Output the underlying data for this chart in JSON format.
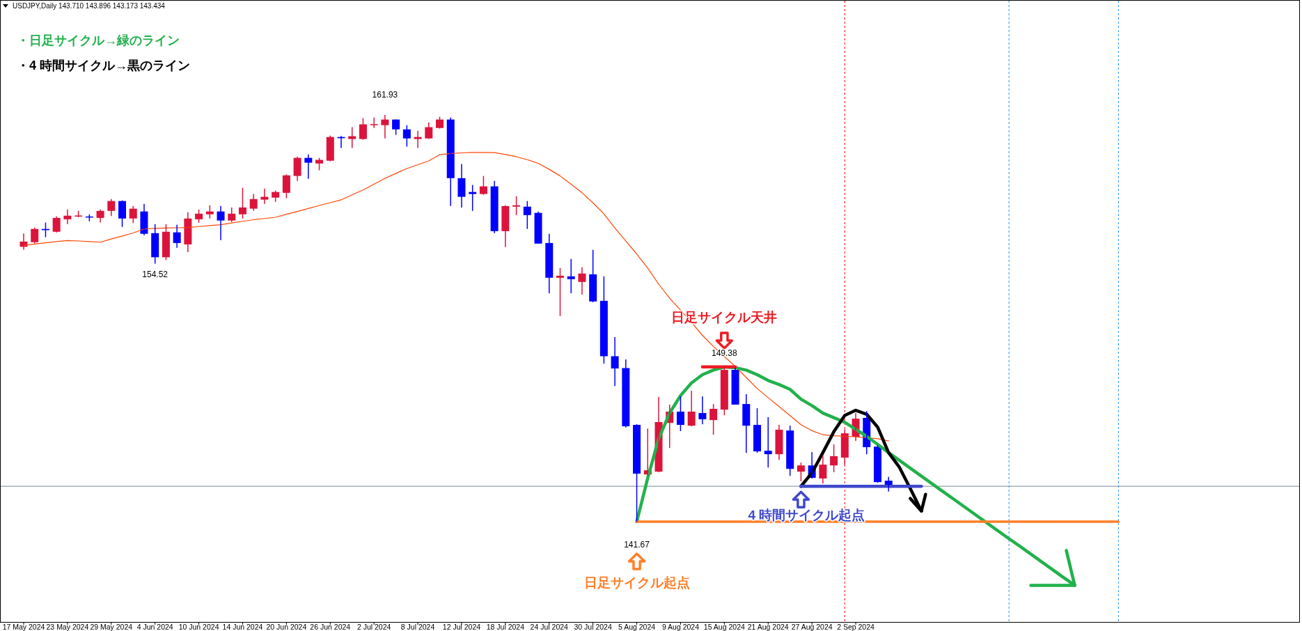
{
  "chart_data": {
    "type": "candlestick",
    "title": "USDJPY,Daily  143.710 143.896 143.173 143.434",
    "categories": [
      "17 May 2024",
      null,
      null,
      null,
      "23 May 2024",
      null,
      null,
      null,
      "29 May 2024",
      null,
      null,
      null,
      "4 Jun 2024",
      null,
      null,
      null,
      "10 Jun 2024",
      null,
      null,
      null,
      "14 Jun 2024",
      null,
      null,
      null,
      "20 Jun 2024",
      null,
      null,
      null,
      "26 Jun 2024",
      null,
      null,
      null,
      "2 Jul 2024",
      null,
      null,
      null,
      "8 Jul 2024",
      null,
      null,
      null,
      "12 Jul 2024",
      null,
      null,
      null,
      "18 Jul 2024",
      null,
      null,
      null,
      "24 Jul 2024",
      null,
      null,
      null,
      "30 Jul 2024",
      null,
      null,
      null,
      "5 Aug 2024",
      null,
      null,
      null,
      "9 Aug 2024",
      null,
      null,
      null,
      "15 Aug 2024",
      null,
      null,
      null,
      "21 Aug 2024",
      null,
      null,
      null,
      "27 Aug 2024",
      null,
      null,
      null,
      "2 Sep 2024",
      null,
      null,
      null,
      null,
      null,
      null,
      null,
      null,
      null,
      null,
      null,
      null,
      null,
      null,
      null,
      null,
      null,
      null,
      null,
      null,
      null,
      null,
      null,
      null,
      null,
      null,
      null,
      null,
      null,
      null,
      null,
      null,
      null,
      null,
      null,
      null,
      null,
      null,
      null,
      null
    ],
    "ohlc": [
      [
        155.36,
        156.02,
        155.22,
        155.62
      ],
      [
        155.59,
        156.32,
        155.53,
        156.25
      ],
      [
        156.25,
        156.57,
        155.84,
        156.19
      ],
      [
        156.11,
        156.87,
        156.08,
        156.8
      ],
      [
        156.73,
        157.22,
        156.49,
        156.91
      ],
      [
        156.89,
        157.15,
        156.83,
        156.92
      ],
      [
        156.87,
        156.98,
        156.63,
        156.82
      ],
      [
        156.8,
        157.22,
        156.57,
        157.15
      ],
      [
        157.15,
        157.74,
        156.89,
        157.64
      ],
      [
        157.64,
        157.67,
        156.35,
        156.77
      ],
      [
        156.77,
        157.39,
        156.54,
        157.26
      ],
      [
        157.12,
        157.5,
        155.94,
        156.01
      ],
      [
        156.04,
        156.49,
        154.52,
        154.84
      ],
      [
        154.84,
        156.49,
        154.7,
        156.11
      ],
      [
        156.08,
        156.46,
        155.31,
        155.55
      ],
      [
        155.48,
        157.08,
        155.1,
        156.77
      ],
      [
        156.73,
        157.22,
        156.56,
        157.01
      ],
      [
        156.98,
        157.43,
        156.77,
        157.12
      ],
      [
        157.12,
        157.39,
        155.69,
        156.67
      ],
      [
        156.67,
        157.32,
        156.6,
        157.01
      ],
      [
        156.98,
        158.3,
        156.77,
        157.32
      ],
      [
        157.26,
        157.99,
        157.15,
        157.74
      ],
      [
        157.71,
        158.26,
        157.5,
        157.85
      ],
      [
        157.81,
        158.16,
        157.6,
        158.09
      ],
      [
        158.05,
        158.96,
        157.78,
        158.92
      ],
      [
        158.89,
        159.86,
        158.64,
        159.79
      ],
      [
        159.79,
        159.96,
        158.75,
        159.55
      ],
      [
        159.51,
        159.79,
        159.17,
        159.69
      ],
      [
        159.65,
        160.9,
        159.62,
        160.83
      ],
      [
        160.83,
        160.88,
        160.28,
        160.77
      ],
      [
        160.73,
        161.32,
        160.28,
        160.87
      ],
      [
        160.73,
        161.77,
        160.69,
        161.46
      ],
      [
        161.43,
        161.8,
        161.28,
        161.47
      ],
      [
        161.42,
        161.93,
        160.76,
        161.7
      ],
      [
        161.7,
        161.7,
        160.94,
        161.21
      ],
      [
        161.21,
        161.42,
        160.35,
        160.76
      ],
      [
        160.73,
        161.14,
        160.28,
        160.83
      ],
      [
        160.76,
        161.56,
        160.73,
        161.32
      ],
      [
        161.28,
        161.84,
        161.25,
        161.7
      ],
      [
        161.7,
        161.8,
        157.39,
        158.78
      ],
      [
        158.78,
        159.48,
        157.32,
        157.85
      ],
      [
        158.09,
        158.44,
        157.15,
        157.99
      ],
      [
        157.99,
        158.89,
        157.95,
        158.37
      ],
      [
        158.37,
        158.64,
        156.04,
        156.14
      ],
      [
        156.14,
        157.43,
        155.35,
        157.39
      ],
      [
        157.36,
        157.88,
        156.94,
        157.43
      ],
      [
        157.36,
        157.64,
        156.25,
        156.94
      ],
      [
        157.05,
        157.12,
        155.52,
        155.52
      ],
      [
        155.55,
        156.01,
        153.05,
        153.82
      ],
      [
        153.82,
        154.3,
        151.91,
        153.92
      ],
      [
        153.89,
        154.76,
        153.05,
        153.75
      ],
      [
        153.61,
        154.34,
        152.98,
        154.03
      ],
      [
        153.99,
        155.21,
        152.6,
        152.64
      ],
      [
        152.67,
        153.89,
        149.54,
        149.91
      ],
      [
        149.91,
        150.86,
        148.43,
        149.3
      ],
      [
        149.32,
        149.75,
        146.36,
        146.42
      ],
      [
        146.49,
        146.52,
        141.67,
        144.06
      ],
      [
        144.02,
        146.31,
        143.99,
        144.23
      ],
      [
        144.16,
        147.88,
        144.13,
        146.63
      ],
      [
        146.59,
        147.5,
        145.34,
        147.15
      ],
      [
        147.15,
        147.91,
        146.18,
        146.49
      ],
      [
        146.45,
        148.19,
        146.42,
        147.15
      ],
      [
        147.08,
        147.91,
        146.52,
        146.77
      ],
      [
        146.73,
        147.53,
        146.0,
        147.29
      ],
      [
        147.25,
        149.38,
        146.97,
        149.23
      ],
      [
        149.23,
        149.34,
        147.5,
        147.5
      ],
      [
        147.53,
        148.02,
        145.1,
        146.45
      ],
      [
        146.49,
        147.32,
        145.1,
        145.17
      ],
      [
        145.2,
        146.87,
        144.37,
        145.03
      ],
      [
        145.03,
        146.49,
        144.75,
        146.25
      ],
      [
        146.21,
        146.45,
        143.95,
        144.3
      ],
      [
        144.16,
        144.61,
        143.68,
        144.47
      ],
      [
        144.47,
        145.13,
        143.82,
        143.85
      ],
      [
        143.82,
        144.98,
        143.57,
        144.51
      ],
      [
        144.47,
        145.52,
        144.13,
        144.93
      ],
      [
        144.86,
        146.27,
        144.51,
        146.07
      ],
      [
        145.9,
        147.08,
        145.69,
        146.8
      ],
      [
        146.84,
        147.18,
        145.03,
        145.38
      ],
      [
        145.41,
        145.48,
        143.61,
        143.64
      ],
      [
        143.71,
        143.896,
        143.173,
        143.434
      ],
      null,
      null,
      null,
      null,
      null,
      null,
      null,
      null,
      null,
      null,
      null,
      null,
      null,
      null,
      null,
      null,
      null,
      null,
      null,
      null,
      null,
      null,
      null,
      null,
      null,
      null,
      null,
      null,
      null,
      null,
      null,
      null,
      null,
      null,
      null,
      null,
      null
    ],
    "colors": [
      "#dc143c",
      "#dc143c",
      "#0000ff",
      "#dc143c",
      "#dc143c",
      "#dc143c",
      "#0000ff",
      "#dc143c",
      "#dc143c",
      "#0000ff",
      "#dc143c",
      "#0000ff",
      "#0000ff",
      "#dc143c",
      "#0000ff",
      "#dc143c",
      "#dc143c",
      "#dc143c",
      "#0000ff",
      "#dc143c",
      "#dc143c",
      "#dc143c",
      "#dc143c",
      "#dc143c",
      "#dc143c",
      "#dc143c",
      "#0000ff",
      "#dc143c",
      "#dc143c",
      "#0000ff",
      "#dc143c",
      "#dc143c",
      "#dc143c",
      "#dc143c",
      "#0000ff",
      "#0000ff",
      "#dc143c",
      "#dc143c",
      "#dc143c",
      "#0000ff",
      "#0000ff",
      "#0000ff",
      "#dc143c",
      "#0000ff",
      "#dc143c",
      "#dc143c",
      "#0000ff",
      "#0000ff",
      "#0000ff",
      "#dc143c",
      "#0000ff",
      "#dc143c",
      "#0000ff",
      "#0000ff",
      "#0000ff",
      "#0000ff",
      "#0000ff",
      "#dc143c",
      "#dc143c",
      "#dc143c",
      "#0000ff",
      "#dc143c",
      "#0000ff",
      "#dc143c",
      "#dc143c",
      "#0000ff",
      "#0000ff",
      "#0000ff",
      "#0000ff",
      "#dc143c",
      "#0000ff",
      "#dc143c",
      "#0000ff",
      "#dc143c",
      "#dc143c",
      "#dc143c",
      "#dc143c",
      "#0000ff",
      "#0000ff",
      "#0000ff",
      null,
      null,
      null,
      null,
      null,
      null,
      null,
      null,
      null,
      null,
      null,
      null,
      null,
      null,
      null,
      null,
      null,
      null,
      null,
      null,
      null,
      null,
      null,
      null,
      null,
      null,
      null,
      null,
      null,
      null,
      null,
      null,
      null,
      null,
      null,
      null,
      null
    ],
    "series": [
      {
        "type": "line",
        "color": "#ff4500",
        "values": [
          155.44,
          155.5,
          155.56,
          155.62,
          155.67,
          155.65,
          155.62,
          155.59,
          155.75,
          155.9,
          156.05,
          156.25,
          156.28,
          156.3,
          156.31,
          156.32,
          156.37,
          156.42,
          156.46,
          156.55,
          156.63,
          156.71,
          156.77,
          156.83,
          156.98,
          157.12,
          157.27,
          157.42,
          157.56,
          157.7,
          157.95,
          158.19,
          158.48,
          158.77,
          159.02,
          159.26,
          159.45,
          159.64,
          159.95,
          160.01,
          160.04,
          160.06,
          160.06,
          160.05,
          159.96,
          159.85,
          159.7,
          159.52,
          159.22,
          158.89,
          158.48,
          158.05,
          157.55,
          157.0,
          156.3,
          155.65,
          155.0,
          154.3,
          153.5,
          152.8,
          152.2,
          151.6,
          150.95,
          150.4,
          149.9,
          149.4,
          148.85,
          148.3,
          147.85,
          147.4,
          146.95,
          146.5,
          146.2,
          146.0,
          145.95,
          145.92,
          145.9,
          145.85,
          145.8,
          145.69,
          null,
          null,
          null,
          null,
          null,
          null,
          null,
          null,
          null,
          null,
          null,
          null,
          null,
          null,
          null,
          null,
          null,
          null,
          null,
          null,
          null,
          null,
          null,
          null,
          null,
          null,
          null,
          null,
          null,
          null,
          null,
          null,
          null,
          null,
          null,
          null,
          null
        ]
      },
      {
        "type": "line",
        "color": "#22b14c",
        "values": [
          null,
          null,
          null,
          null,
          null,
          null,
          null,
          null,
          null,
          null,
          null,
          null,
          null,
          null,
          null,
          null,
          null,
          null,
          null,
          null,
          null,
          null,
          null,
          null,
          null,
          null,
          null,
          null,
          null,
          null,
          null,
          null,
          null,
          null,
          null,
          null,
          null,
          null,
          null,
          null,
          null,
          null,
          null,
          null,
          null,
          null,
          null,
          null,
          null,
          null,
          null,
          null,
          null,
          null,
          null,
          null,
          141.67,
          143.84,
          145.8,
          147.08,
          147.95,
          148.58,
          148.99,
          149.22,
          149.37,
          149.34,
          149.22,
          148.99,
          148.7,
          148.5,
          148.26,
          147.77,
          147.45,
          147.08,
          146.85,
          146.62,
          146.27,
          145.92,
          145.52,
          145.11,
          144.72,
          144.33,
          143.94,
          143.55,
          143.16,
          142.77,
          142.38,
          141.99,
          141.6,
          141.21,
          140.82,
          140.44,
          140.05,
          139.66,
          139.27,
          138.88,
          138.5,
          null,
          null,
          null,
          null,
          null,
          null,
          null,
          null,
          null,
          null,
          null,
          null,
          null,
          null,
          null,
          null,
          null,
          null,
          null,
          null
        ]
      },
      {
        "type": "line",
        "color": "#000000",
        "values": [
          null,
          null,
          null,
          null,
          null,
          null,
          null,
          null,
          null,
          null,
          null,
          null,
          null,
          null,
          null,
          null,
          null,
          null,
          null,
          null,
          null,
          null,
          null,
          null,
          null,
          null,
          null,
          null,
          null,
          null,
          null,
          null,
          null,
          null,
          null,
          null,
          null,
          null,
          null,
          null,
          null,
          null,
          null,
          null,
          null,
          null,
          null,
          null,
          null,
          null,
          null,
          null,
          null,
          null,
          null,
          null,
          null,
          null,
          null,
          null,
          null,
          null,
          null,
          null,
          null,
          null,
          null,
          null,
          null,
          null,
          null,
          143.43,
          144.1,
          145.11,
          146.15,
          146.96,
          147.22,
          147.02,
          146.38,
          145.11,
          144.37,
          143.3,
          142.2,
          null,
          null,
          null,
          null,
          null,
          null,
          null,
          null,
          null,
          null,
          null,
          null,
          null,
          null,
          null,
          null,
          null,
          null,
          null,
          null,
          null,
          null,
          null,
          null,
          null,
          null,
          null,
          null,
          null,
          null,
          null,
          null,
          null,
          null
        ]
      },
      {
        "type": "line",
        "color": "#ff7f27",
        "values": [
          null,
          null,
          null,
          null,
          null,
          null,
          null,
          null,
          null,
          null,
          null,
          null,
          null,
          null,
          null,
          null,
          null,
          null,
          null,
          null,
          null,
          null,
          null,
          null,
          null,
          null,
          null,
          null,
          null,
          null,
          null,
          null,
          null,
          null,
          null,
          null,
          null,
          null,
          null,
          null,
          null,
          null,
          null,
          null,
          null,
          null,
          null,
          null,
          null,
          null,
          null,
          null,
          null,
          null,
          null,
          null,
          141.67,
          141.67,
          141.67,
          141.67,
          141.67,
          141.67,
          141.67,
          141.67,
          141.67,
          141.67,
          141.67,
          141.67,
          141.67,
          141.67,
          141.67,
          141.67,
          141.67,
          141.67,
          141.67,
          141.67,
          141.67,
          141.67,
          141.67,
          141.67,
          141.67,
          141.67,
          141.67,
          141.67,
          141.67,
          141.67,
          141.67,
          141.67,
          141.67,
          141.67,
          141.67,
          141.67,
          141.67,
          141.67,
          141.67,
          141.67,
          141.67,
          141.67,
          141.67,
          141.67,
          141.67,
          null,
          null,
          null,
          null,
          null,
          null,
          null,
          null,
          null,
          null,
          null,
          null,
          null,
          null,
          null,
          null
        ]
      },
      {
        "type": "line",
        "color": "#3f48cc",
        "values": [
          null,
          null,
          null,
          null,
          null,
          null,
          null,
          null,
          null,
          null,
          null,
          null,
          null,
          null,
          null,
          null,
          null,
          null,
          null,
          null,
          null,
          null,
          null,
          null,
          null,
          null,
          null,
          null,
          null,
          null,
          null,
          null,
          null,
          null,
          null,
          null,
          null,
          null,
          null,
          null,
          null,
          null,
          null,
          null,
          null,
          null,
          null,
          null,
          null,
          null,
          null,
          null,
          null,
          null,
          null,
          null,
          null,
          null,
          null,
          null,
          null,
          null,
          null,
          null,
          null,
          null,
          null,
          null,
          null,
          null,
          null,
          143.43,
          143.43,
          143.43,
          143.43,
          143.43,
          143.43,
          143.43,
          143.43,
          143.43,
          143.43,
          143.43,
          143.43,
          null,
          null,
          null,
          null,
          null,
          null,
          null,
          null,
          null,
          null,
          null,
          null,
          null,
          null,
          null,
          null,
          null,
          null,
          null,
          null,
          null,
          null,
          null,
          null,
          null,
          null,
          null,
          null,
          null,
          null,
          null,
          null,
          null,
          null
        ]
      },
      {
        "type": "line",
        "color": "#ed1c24",
        "values": [
          null,
          null,
          null,
          null,
          null,
          null,
          null,
          null,
          null,
          null,
          null,
          null,
          null,
          null,
          null,
          null,
          null,
          null,
          null,
          null,
          null,
          null,
          null,
          null,
          null,
          null,
          null,
          null,
          null,
          null,
          null,
          null,
          null,
          null,
          null,
          null,
          null,
          null,
          null,
          null,
          null,
          null,
          null,
          null,
          null,
          null,
          null,
          null,
          null,
          null,
          null,
          null,
          null,
          null,
          null,
          null,
          null,
          null,
          null,
          null,
          null,
          null,
          149.38,
          149.38,
          149.38,
          149.38,
          null,
          null,
          null,
          null,
          null,
          null,
          null,
          null,
          null,
          null,
          null,
          null,
          null,
          null,
          null,
          null,
          null,
          null,
          null,
          null,
          null,
          null,
          null,
          null,
          null,
          null,
          null,
          null,
          null,
          null,
          null,
          null,
          null,
          null,
          null,
          null,
          null,
          null,
          null,
          null,
          null,
          null,
          null,
          null,
          null,
          null,
          null,
          null,
          null,
          null,
          null
        ]
      }
    ],
    "tick_labels": "x",
    "ref_lines": [
      {
        "axis": "y",
        "value": 143.434,
        "color": "#778899",
        "line_style": "solid"
      }
    ],
    "annotations": [
      "・日足サイクル→緑のライン",
      "・4 時間サイクル→黒のライン",
      "161.93",
      {
        "text": "154.52",
        "x": "4 Jun 2024",
        "y": 154.52
      },
      "日足サイクル天井",
      {
        "text": "149.38",
        "y": 149.38
      },
      {
        "text": "4 時間サイクル起点",
        "y": 143.43
      },
      {
        "text": "141.67",
        "x": "5 Aug 2024",
        "y": 141.67
      },
      "日足サイクル起点"
    ]
  }
}
